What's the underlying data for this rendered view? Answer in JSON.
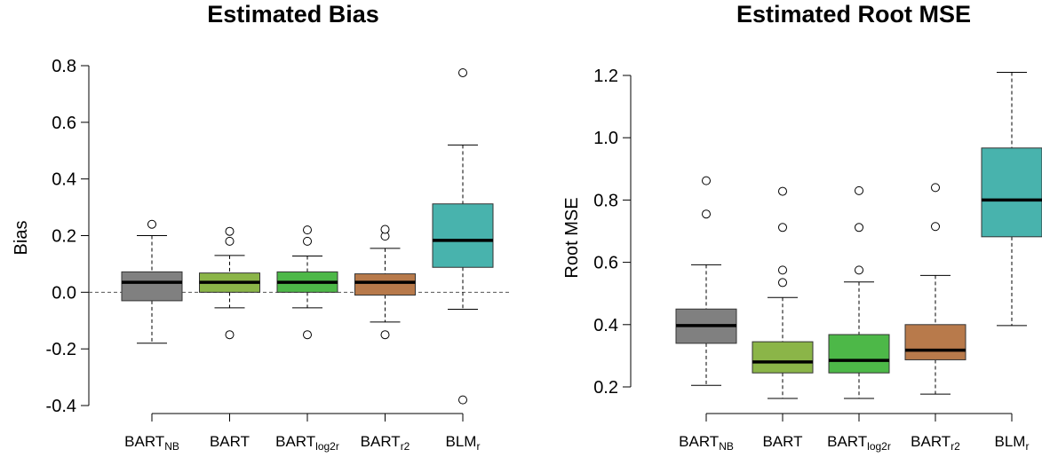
{
  "chart_data": [
    {
      "type": "box",
      "title": "Estimated Bias",
      "xlabel": "",
      "ylabel": "Bias",
      "ylim": [
        -0.4,
        0.8
      ],
      "yticks": [
        "-0.4",
        "-0.2",
        "0.0",
        "0.2",
        "0.4",
        "0.6",
        "0.8"
      ],
      "yticks_values": [
        -0.4,
        -0.2,
        0.0,
        0.2,
        0.4,
        0.6,
        0.8
      ],
      "reference_line": 0.0,
      "categories": [
        {
          "base": "BART",
          "sub": "NB"
        },
        {
          "base": "BART",
          "sub": ""
        },
        {
          "base": "BART",
          "sub": "log2r"
        },
        {
          "base": "BART",
          "sub": "r2"
        },
        {
          "base": "BLM",
          "sub": "r"
        }
      ],
      "boxes": [
        {
          "color": "#808080",
          "whisker_low": -0.18,
          "q1": -0.03,
          "median": 0.035,
          "q3": 0.072,
          "whisker_high": 0.2,
          "outliers": [
            0.24
          ]
        },
        {
          "color": "#8bb548",
          "whisker_low": -0.055,
          "q1": 0.0,
          "median": 0.035,
          "q3": 0.068,
          "whisker_high": 0.13,
          "outliers": [
            0.18,
            0.215,
            -0.15
          ]
        },
        {
          "color": "#4db848",
          "whisker_low": -0.055,
          "q1": 0.0,
          "median": 0.035,
          "q3": 0.072,
          "whisker_high": 0.128,
          "outliers": [
            0.18,
            0.22,
            -0.15
          ]
        },
        {
          "color": "#b87a4b",
          "whisker_low": -0.105,
          "q1": -0.01,
          "median": 0.035,
          "q3": 0.065,
          "whisker_high": 0.155,
          "outliers": [
            0.198,
            0.222,
            -0.15
          ]
        },
        {
          "color": "#48b3ad",
          "whisker_low": -0.06,
          "q1": 0.088,
          "median": 0.183,
          "q3": 0.312,
          "whisker_high": 0.52,
          "outliers": [
            0.775,
            -0.38
          ]
        }
      ]
    },
    {
      "type": "box",
      "title": "Estimated Root MSE",
      "xlabel": "",
      "ylabel": "Root MSE",
      "ylim": [
        0.2,
        1.2
      ],
      "yticks": [
        "0.2",
        "0.4",
        "0.6",
        "0.8",
        "1.0",
        "1.2"
      ],
      "yticks_values": [
        0.2,
        0.4,
        0.6,
        0.8,
        1.0,
        1.2
      ],
      "categories": [
        {
          "base": "BART",
          "sub": "NB"
        },
        {
          "base": "BART",
          "sub": ""
        },
        {
          "base": "BART",
          "sub": "log2r"
        },
        {
          "base": "BART",
          "sub": "r2"
        },
        {
          "base": "BLM",
          "sub": "r"
        }
      ],
      "boxes": [
        {
          "color": "#808080",
          "whisker_low": 0.205,
          "q1": 0.34,
          "median": 0.397,
          "q3": 0.45,
          "whisker_high": 0.592,
          "outliers": [
            0.755,
            0.862
          ]
        },
        {
          "color": "#8bb548",
          "whisker_low": 0.163,
          "q1": 0.245,
          "median": 0.28,
          "q3": 0.345,
          "whisker_high": 0.487,
          "outliers": [
            0.535,
            0.575,
            0.712,
            0.828
          ]
        },
        {
          "color": "#4db848",
          "whisker_low": 0.163,
          "q1": 0.245,
          "median": 0.285,
          "q3": 0.368,
          "whisker_high": 0.537,
          "outliers": [
            0.575,
            0.712,
            0.83
          ]
        },
        {
          "color": "#b87a4b",
          "whisker_low": 0.177,
          "q1": 0.287,
          "median": 0.318,
          "q3": 0.4,
          "whisker_high": 0.558,
          "outliers": [
            0.715,
            0.84
          ]
        },
        {
          "color": "#48b3ad",
          "whisker_low": 0.397,
          "q1": 0.682,
          "median": 0.8,
          "q3": 0.967,
          "whisker_high": 1.21,
          "outliers": []
        }
      ]
    }
  ]
}
